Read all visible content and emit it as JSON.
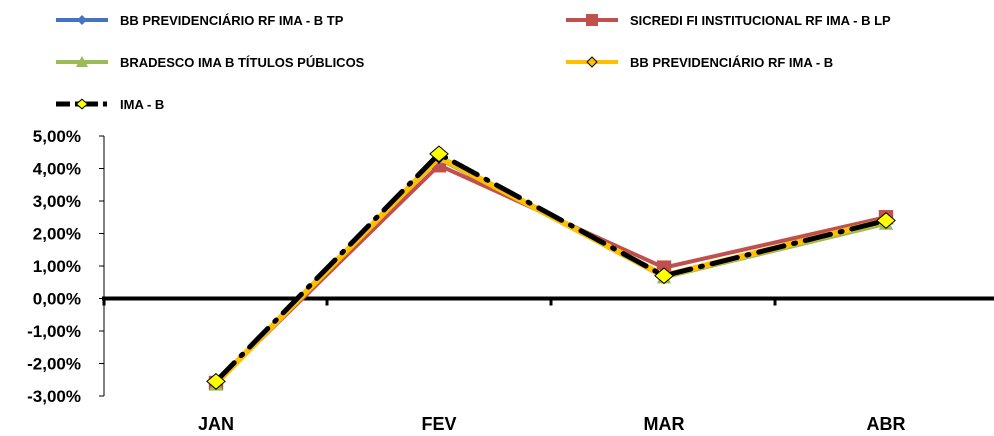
{
  "chart_data": {
    "type": "line",
    "categories": [
      "JAN",
      "FEV",
      "MAR",
      "ABR"
    ],
    "ylim": [
      -3,
      5
    ],
    "yticks": [
      -3,
      -2,
      -1,
      0,
      1,
      2,
      3,
      4,
      5
    ],
    "ytick_labels": [
      "-3,00%",
      "-2,00%",
      "-1,00%",
      "0,00%",
      "1,00%",
      "2,00%",
      "3,00%",
      "4,00%",
      "5,00%"
    ],
    "grid": false,
    "legend_position": "top",
    "series": [
      {
        "name": "BB PREVIDENCIÁRIO RF IMA - B TP",
        "values": [
          -2.6,
          4.3,
          0.7,
          2.4
        ],
        "color": "#4472C4",
        "marker": "diamond"
      },
      {
        "name": "SICREDI FI INSTITUCIONAL RF IMA - B LP",
        "values": [
          -2.6,
          4.1,
          0.95,
          2.5
        ],
        "color": "#C0504D",
        "marker": "square"
      },
      {
        "name": "BRADESCO IMA B TÍTULOS PÚBLICOS",
        "values": [
          -2.65,
          4.35,
          0.65,
          2.3
        ],
        "color": "#9BBB59",
        "marker": "triangle"
      },
      {
        "name": "BB PREVIDENCIÁRIO RF IMA - B",
        "values": [
          -2.6,
          4.35,
          0.7,
          2.4
        ],
        "color": "#FFC000",
        "marker": "diamond-small"
      },
      {
        "name": "IMA - B",
        "values": [
          -2.55,
          4.45,
          0.7,
          2.4
        ],
        "color": "#000000",
        "marker": "diamond-yellow"
      }
    ]
  }
}
